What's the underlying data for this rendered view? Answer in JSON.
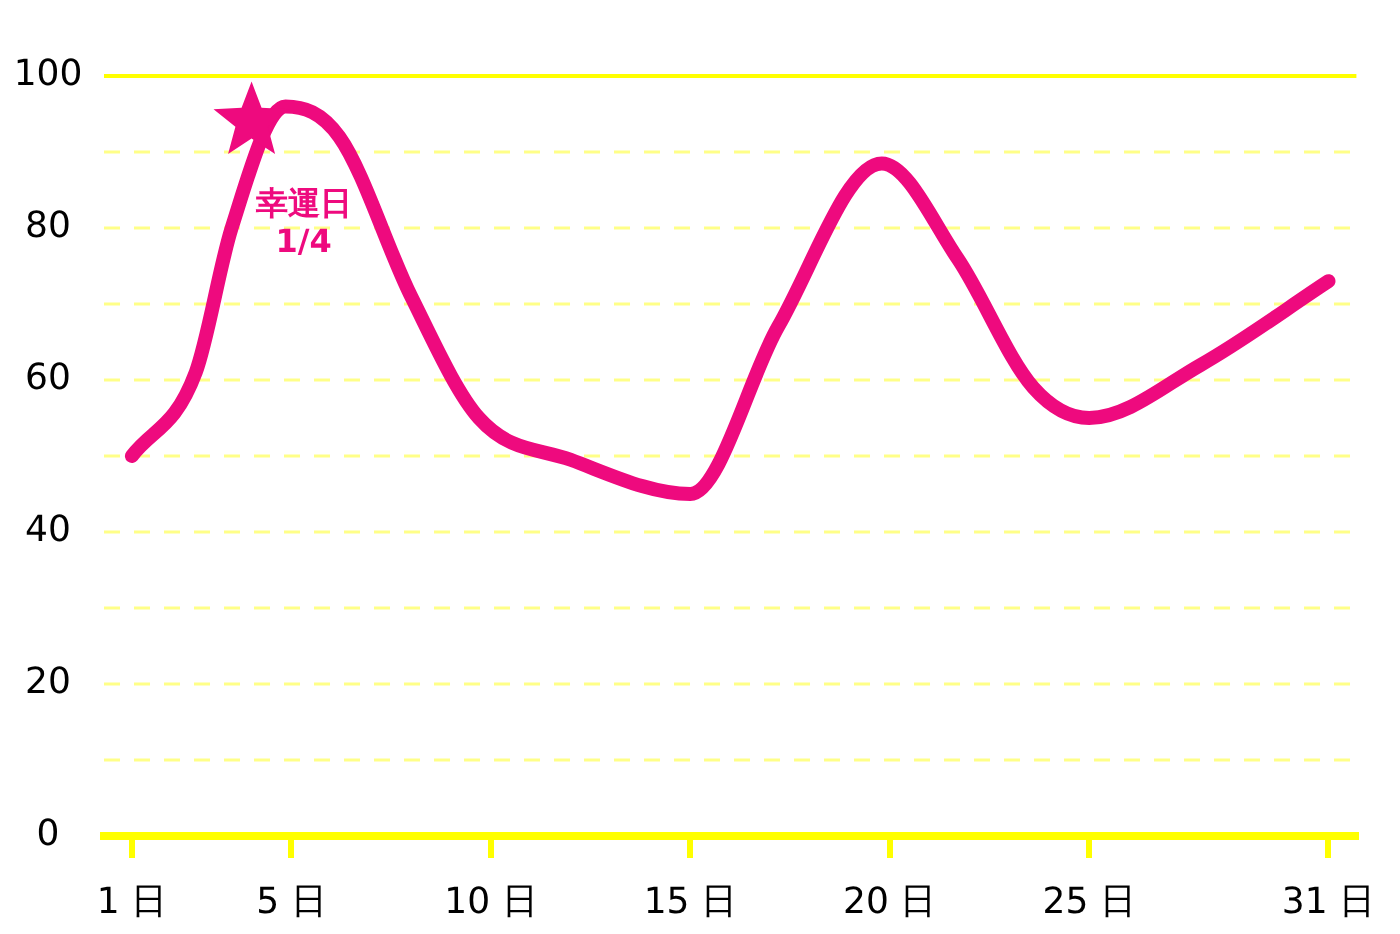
{
  "chart_data": {
    "type": "line",
    "xlim": [
      0.3,
      31.7
    ],
    "xticks": [
      {
        "value": 1,
        "label": "1 日"
      },
      {
        "value": 5,
        "label": "5 日"
      },
      {
        "value": 10,
        "label": "10 日"
      },
      {
        "value": 15,
        "label": "15 日"
      },
      {
        "value": 20,
        "label": "20 日"
      },
      {
        "value": 25,
        "label": "25 日"
      },
      {
        "value": 31,
        "label": "31 日"
      }
    ],
    "ylim": [
      0,
      100
    ],
    "yticks": [
      0,
      {
        "value": 10,
        "label": null
      },
      20,
      {
        "value": 30,
        "label": null
      },
      40,
      {
        "value": 50,
        "label": null
      },
      60,
      {
        "value": 70,
        "label": null
      },
      80,
      {
        "value": 90,
        "label": null
      },
      100
    ],
    "grid": "y",
    "legend": false,
    "line_style": "solid",
    "marker": "none",
    "series": [
      {
        "color": "#ee0a7e",
        "x": [
          1,
          2.6,
          3.5,
          4.85,
          6.2,
          8,
          9.7,
          12,
          15,
          17.2,
          19.8,
          21.7,
          23.6,
          25,
          27.8,
          31
        ],
        "values": [
          50,
          61,
          80,
          96,
          92,
          71,
          55,
          49.5,
          45,
          67,
          88.5,
          76,
          59,
          55,
          62,
          73
        ]
      },
      {
        "type": "scatter",
        "color": "#ee0a7e",
        "marker": "star",
        "x": [
          4
        ],
        "values": [
          94
        ]
      }
    ],
    "annotations": [
      {
        "text": "幸運日\n1/4",
        "x": 4,
        "y": 94
      }
    ]
  }
}
